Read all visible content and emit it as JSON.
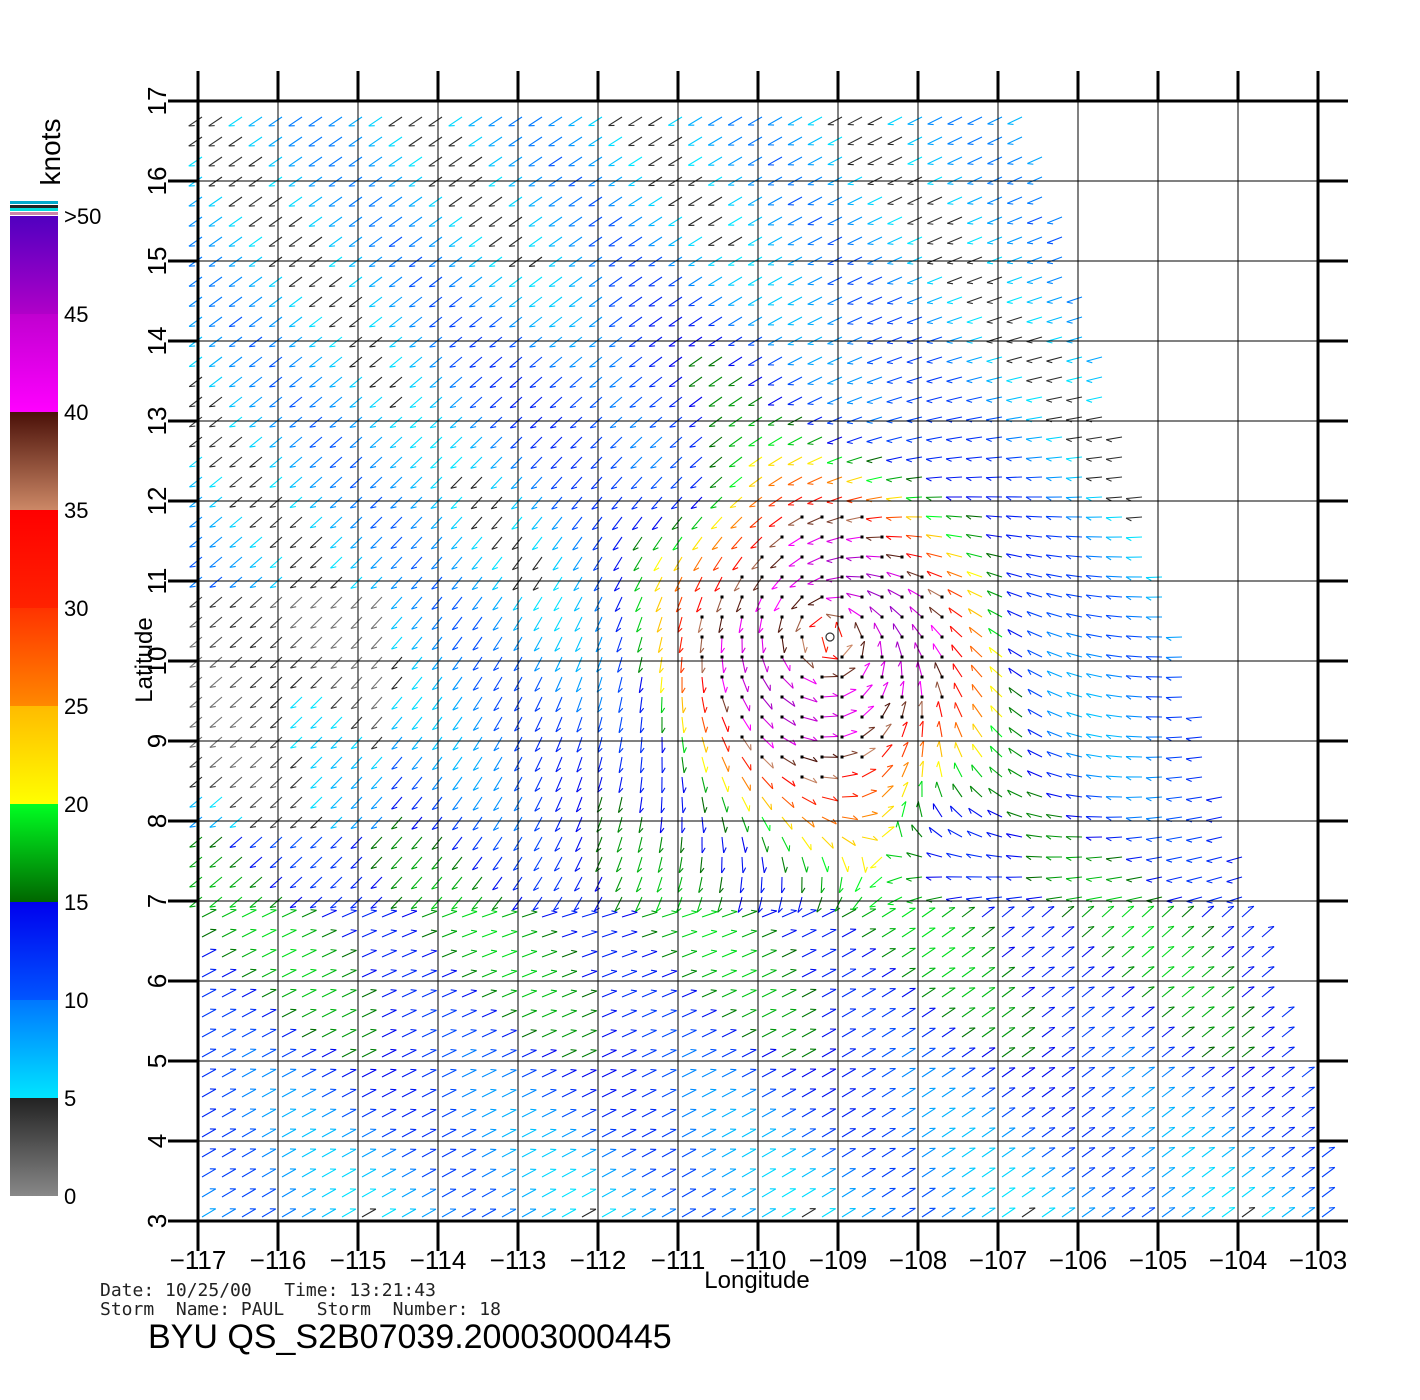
{
  "chart_data": {
    "type": "scatter",
    "subtype": "wind-vector-field",
    "xlabel": "Longitude",
    "ylabel": "Latitude",
    "xlim": [
      -117,
      -103
    ],
    "ylim": [
      3,
      17
    ],
    "x_ticks": [
      "-117",
      "-116",
      "-115",
      "-114",
      "-113",
      "-112",
      "-111",
      "-110",
      "-109",
      "-108",
      "-107",
      "-106",
      "-105",
      "-104",
      "-103"
    ],
    "y_ticks": [
      "3",
      "4",
      "5",
      "6",
      "7",
      "8",
      "9",
      "10",
      "11",
      "12",
      "13",
      "14",
      "15",
      "16",
      "17"
    ],
    "grid": true,
    "swath_corners": [
      [
        -117,
        17
      ],
      [
        -106.6,
        17
      ],
      [
        -104.6,
        10
      ],
      [
        -102.7,
        3
      ],
      [
        -117,
        3
      ]
    ],
    "storm_center": [
      -109.1,
      10.3
    ],
    "colorbar": {
      "title": "knots",
      "labels": [
        "0",
        "5",
        "10",
        "15",
        "20",
        "25",
        "30",
        "35",
        "40",
        "45",
        ">50"
      ],
      "bands": [
        {
          "range": [
            0,
            5
          ],
          "colors": [
            "#888888",
            "#222222"
          ]
        },
        {
          "range": [
            5,
            10
          ],
          "colors": [
            "#00e5ff",
            "#0077ff"
          ]
        },
        {
          "range": [
            10,
            15
          ],
          "colors": [
            "#0055ff",
            "#0000ee"
          ]
        },
        {
          "range": [
            15,
            20
          ],
          "colors": [
            "#006600",
            "#00ff22"
          ]
        },
        {
          "range": [
            20,
            25
          ],
          "colors": [
            "#ffff00",
            "#ffbb00"
          ]
        },
        {
          "range": [
            25,
            30
          ],
          "colors": [
            "#ff8800",
            "#ff3300"
          ]
        },
        {
          "range": [
            30,
            35
          ],
          "colors": [
            "#ff2200",
            "#ff0000"
          ]
        },
        {
          "range": [
            35,
            40
          ],
          "colors": [
            "#cc8866",
            "#4a1008"
          ]
        },
        {
          "range": [
            40,
            45
          ],
          "colors": [
            "#ff00ff",
            "#c000d0"
          ]
        },
        {
          "range": [
            45,
            50
          ],
          "colors": [
            "#b000c8",
            "#5000c0"
          ]
        }
      ]
    }
  },
  "footer": {
    "date_line": "Date: 10/25/00   Time: 13:21:43",
    "storm_line": "Storm  Name: PAUL   Storm  Number: 18",
    "product": "BYU  QS_S2B07039.20003000445"
  }
}
